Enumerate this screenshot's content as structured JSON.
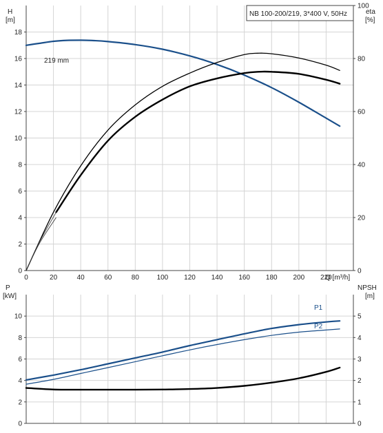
{
  "chart_data": [
    {
      "type": "line",
      "title": "NB 100-200/219, 3*400 V, 50Hz",
      "xlabel": "Q [m³/h]",
      "ylabel": [
        "H",
        "[m]"
      ],
      "ylabel_right": [
        "eta",
        "[%]"
      ],
      "xlim": [
        0,
        240
      ],
      "ylim": [
        0,
        20
      ],
      "ylim_right": [
        0,
        100
      ],
      "xticks": [
        "0",
        "20",
        "40",
        "60",
        "80",
        "100",
        "120",
        "140",
        "160",
        "180",
        "200",
        "220"
      ],
      "yticks": [
        "0",
        "2",
        "4",
        "6",
        "8",
        "10",
        "12",
        "14",
        "16",
        "18"
      ],
      "yticks_right": [
        "0",
        "20",
        "40",
        "60",
        "80",
        "100"
      ],
      "annotation": "219 mm",
      "grid": true,
      "colors": {
        "head": "#1a4f8a",
        "eta": "#000000",
        "thin": "#333333"
      },
      "series": [
        {
          "role": "head",
          "axis": "left",
          "x": [
            0,
            10,
            20,
            30,
            40,
            50,
            60,
            80,
            100,
            120,
            140,
            160,
            180,
            200,
            220,
            230
          ],
          "y": [
            17.0,
            17.15,
            17.3,
            17.37,
            17.38,
            17.35,
            17.28,
            17.05,
            16.7,
            16.2,
            15.55,
            14.75,
            13.8,
            12.7,
            11.5,
            10.9
          ]
        },
        {
          "role": "eta-upper",
          "axis": "right",
          "x": [
            0,
            20,
            40,
            60,
            80,
            100,
            120,
            140,
            160,
            170,
            180,
            200,
            220,
            230
          ],
          "y": [
            0,
            22,
            39.5,
            53,
            62.5,
            69.5,
            74.5,
            78.5,
            81.5,
            82,
            81.8,
            80.2,
            77.5,
            75.5
          ]
        },
        {
          "role": "eta-lower",
          "axis": "right",
          "x": [
            22,
            40,
            60,
            80,
            100,
            120,
            140,
            160,
            170,
            180,
            200,
            220,
            230
          ],
          "y": [
            22,
            36,
            49,
            58,
            64.5,
            69.5,
            72.5,
            74.5,
            75,
            75,
            74.2,
            72,
            70.5
          ]
        },
        {
          "role": "eta-lead",
          "axis": "right",
          "x": [
            0,
            10,
            22
          ],
          "y": [
            0,
            11,
            22
          ]
        }
      ]
    },
    {
      "type": "line",
      "xlim": [
        0,
        240
      ],
      "ylabel": [
        "P",
        "[kW]"
      ],
      "ylabel_right": [
        "NPSH",
        "[m]"
      ],
      "ylim": [
        0,
        12
      ],
      "ylim_right": [
        0,
        6
      ],
      "yticks": [
        "0",
        "2",
        "4",
        "6",
        "8",
        "10"
      ],
      "yticks_right": [
        "0",
        "1",
        "2",
        "3",
        "4",
        "5"
      ],
      "grid": true,
      "colors": {
        "p1": "#1a4f8a",
        "p2": "#1a4f8a",
        "npsh": "#000000"
      },
      "series": [
        {
          "name": "P1",
          "axis": "left",
          "x": [
            0,
            20,
            40,
            60,
            80,
            100,
            120,
            140,
            160,
            180,
            200,
            220,
            230
          ],
          "y": [
            4.05,
            4.5,
            5.0,
            5.55,
            6.1,
            6.65,
            7.25,
            7.8,
            8.35,
            8.85,
            9.2,
            9.45,
            9.55
          ]
        },
        {
          "name": "P2",
          "axis": "left",
          "x": [
            0,
            20,
            40,
            60,
            80,
            100,
            120,
            140,
            160,
            180,
            200,
            220,
            230
          ],
          "y": [
            3.65,
            4.1,
            4.65,
            5.2,
            5.75,
            6.3,
            6.85,
            7.35,
            7.8,
            8.2,
            8.5,
            8.7,
            8.8
          ]
        },
        {
          "role": "npsh",
          "axis": "right",
          "x": [
            0,
            20,
            40,
            60,
            80,
            100,
            120,
            140,
            160,
            180,
            200,
            220,
            230
          ],
          "y": [
            1.65,
            1.58,
            1.57,
            1.57,
            1.57,
            1.58,
            1.6,
            1.65,
            1.75,
            1.9,
            2.1,
            2.4,
            2.6
          ]
        }
      ]
    }
  ]
}
